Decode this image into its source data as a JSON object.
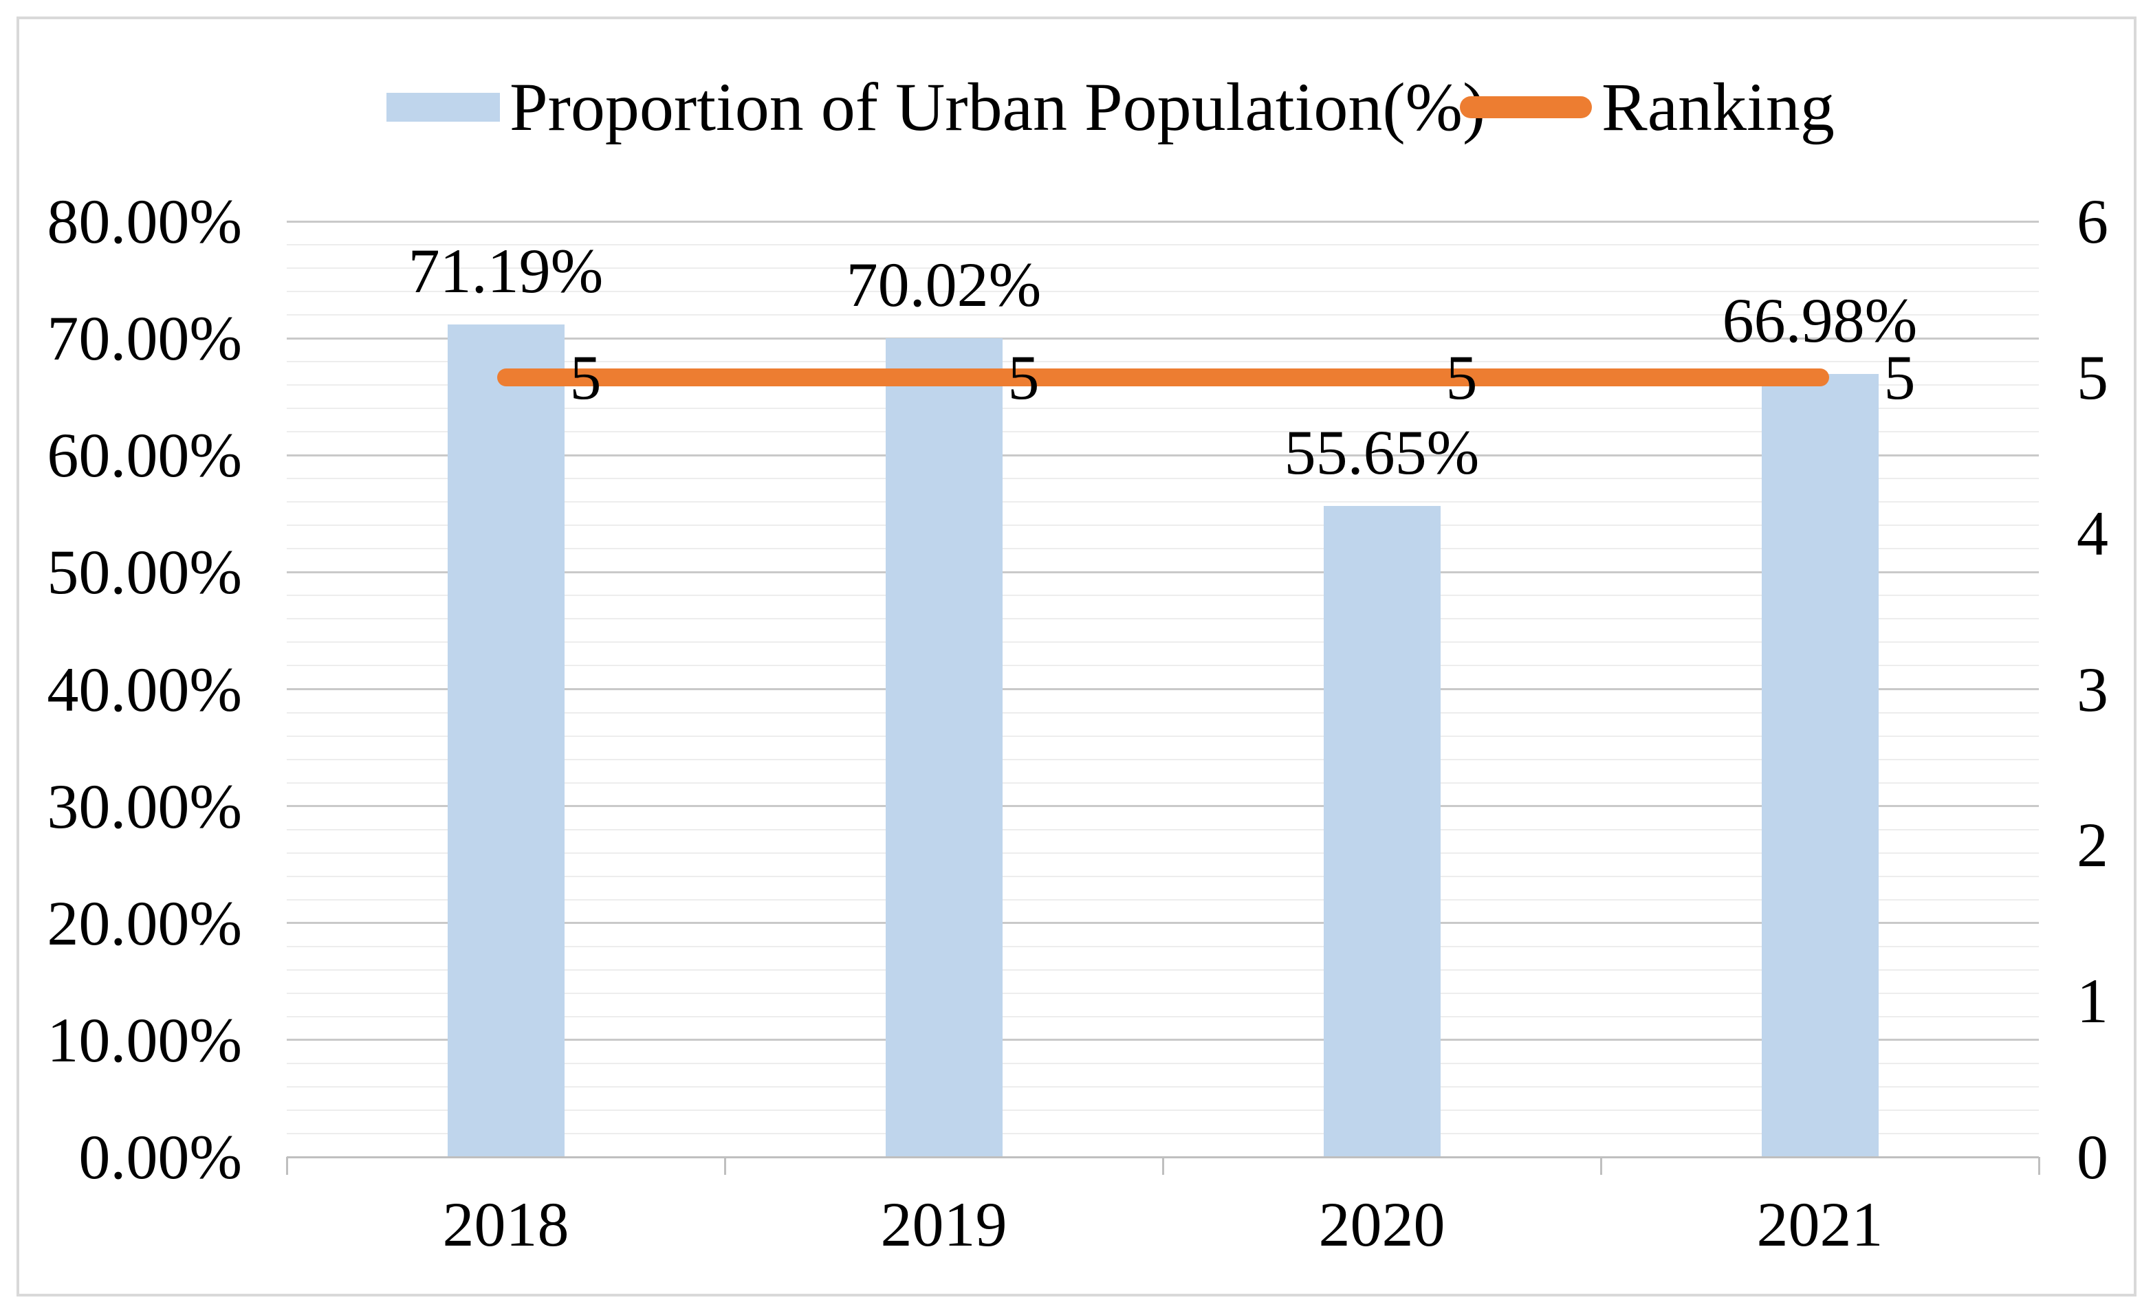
{
  "legend": {
    "items": [
      {
        "label": "Proportion of Urban Population(%)",
        "swatch": "bar"
      },
      {
        "label": "Ranking",
        "swatch": "line"
      }
    ]
  },
  "colors": {
    "bar_fill": "#BFD5EC",
    "line": "#ED7D31",
    "major_grid": "#C9C9C9",
    "minor_grid": "#EDEDED",
    "axis_line": "#BFBFBF",
    "frame_border": "#D9D9D9",
    "text": "#000000"
  },
  "chart_data": {
    "type": "combo",
    "categories": [
      "2018",
      "2019",
      "2020",
      "2021"
    ],
    "series": [
      {
        "name": "Proportion of Urban Population(%)",
        "type": "bar",
        "axis": "left",
        "values": [
          71.19,
          70.02,
          55.65,
          66.98
        ],
        "labels": [
          "71.19%",
          "70.02%",
          "55.65%",
          "66.98%"
        ]
      },
      {
        "name": "Ranking",
        "type": "line",
        "axis": "right",
        "values": [
          5,
          5,
          5,
          5
        ],
        "labels": [
          "5",
          "5",
          "5",
          "5"
        ]
      }
    ],
    "left_axis": {
      "min": 0,
      "max": 80,
      "major_step": 10,
      "minor_step": 2,
      "tick_labels": [
        "0.00%",
        "10.00%",
        "20.00%",
        "30.00%",
        "40.00%",
        "50.00%",
        "60.00%",
        "70.00%",
        "80.00%"
      ]
    },
    "right_axis": {
      "min": 0,
      "max": 6,
      "major_step": 1,
      "tick_labels": [
        "0",
        "1",
        "2",
        "3",
        "4",
        "5",
        "6"
      ]
    },
    "grid": "horizontal major + minor",
    "legend_position": "top-center",
    "title": ""
  }
}
